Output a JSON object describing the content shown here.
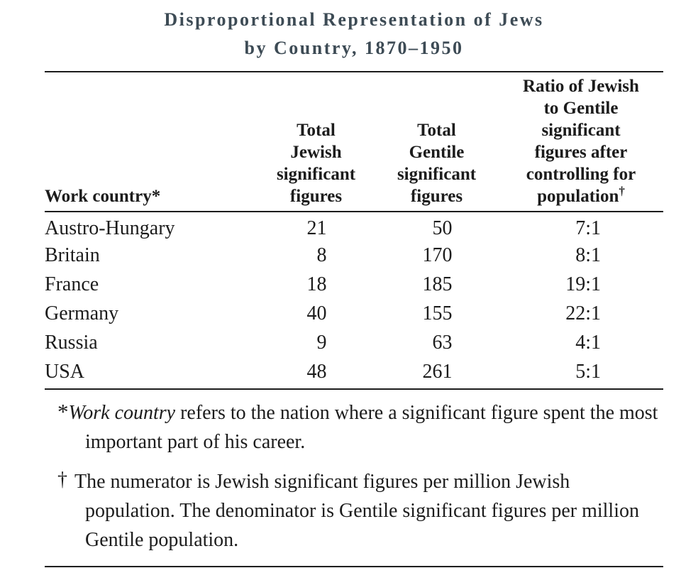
{
  "title": {
    "line1": "Disproportional Representation of Jews",
    "line2": "by Country, 1870–1950"
  },
  "table": {
    "headers": {
      "country": "Work country*",
      "jewish": "Total\nJewish\nsignificant\nfigures",
      "gentile": "Total\nGentile\nsignificant\nfigures",
      "ratio_main": "Ratio of Jewish\nto Gentile\nsignificant\nfigures after\ncontrolling for\npopulation",
      "ratio_dagger": "†"
    },
    "rows": [
      {
        "country": "Austro-Hungary",
        "jewish": "21",
        "gentile": "50",
        "ratio": "7:1"
      },
      {
        "country": "Britain",
        "jewish": "8",
        "gentile": "170",
        "ratio": "8:1"
      },
      {
        "country": "France",
        "jewish": "18",
        "gentile": "185",
        "ratio": "19:1"
      },
      {
        "country": "Germany",
        "jewish": "40",
        "gentile": "155",
        "ratio": "22:1"
      },
      {
        "country": "Russia",
        "jewish": "9",
        "gentile": "63",
        "ratio": "4:1"
      },
      {
        "country": "USA",
        "jewish": "48",
        "gentile": "261",
        "ratio": "5:1"
      }
    ]
  },
  "footnotes": {
    "first": {
      "marker": "*",
      "italic": "Work country",
      "text": " refers to the nation where a significant figure spent the most important part of his career."
    },
    "second": {
      "marker": "†",
      "text": "The numerator is Jewish significant figures per million Jewish population. The denominator is Gentile significant figures per million Gentile population."
    }
  },
  "colors": {
    "title_color": "#3d4b55",
    "text_color": "#1c1c1c",
    "rule_color": "#1c1c1c"
  }
}
